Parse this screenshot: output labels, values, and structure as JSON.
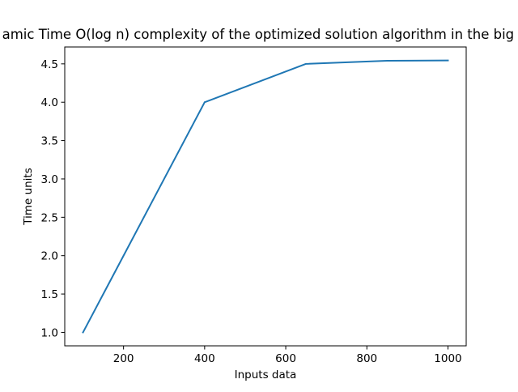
{
  "chart_data": {
    "type": "line",
    "title": "amic Time O(log n) complexity of the optimized solution algorithm in the big O",
    "xlabel": "Inputs data",
    "ylabel": "Time units",
    "xlim": [
      55,
      1045
    ],
    "ylim": [
      0.825,
      4.72
    ],
    "xticks": [
      200,
      400,
      600,
      800,
      1000
    ],
    "xtick_labels": [
      "200",
      "400",
      "600",
      "800",
      "1000"
    ],
    "yticks": [
      1.0,
      1.5,
      2.0,
      2.5,
      3.0,
      3.5,
      4.0,
      4.5
    ],
    "ytick_labels": [
      "1.0",
      "1.5",
      "2.0",
      "2.5",
      "3.0",
      "3.5",
      "4.0",
      "4.5"
    ],
    "grid": false,
    "legend": false,
    "series": [
      {
        "color": "#1f77b4",
        "x": [
          100,
          400,
          650,
          850,
          1000
        ],
        "y": [
          1.0,
          4.0,
          4.5,
          4.54,
          4.545
        ]
      }
    ]
  }
}
